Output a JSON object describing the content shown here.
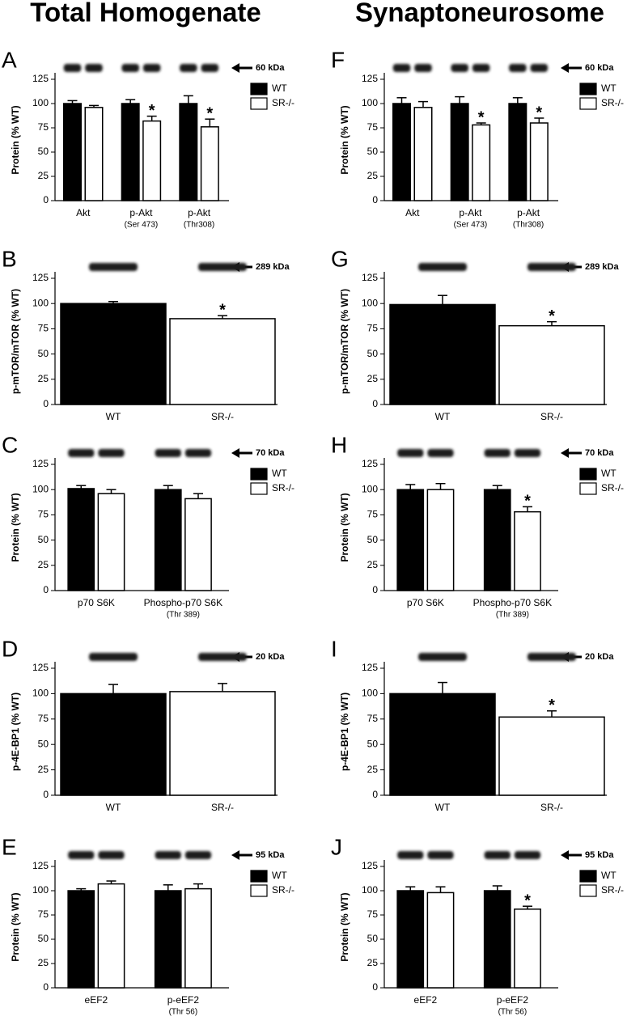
{
  "columns": [
    "Total Homogenate",
    "Synaptoneurosome"
  ],
  "chart_data": [
    {
      "type": "bar",
      "panel": "A",
      "band_label": "60 kDa",
      "ylabel": "Protein (% WT)",
      "categories": [
        "Akt",
        "p-Akt",
        "p-Akt"
      ],
      "category_notes": [
        null,
        "(Ser 473)",
        "(Thr308)"
      ],
      "series": [
        {
          "name": "WT",
          "color": "#000000",
          "values": [
            100,
            100,
            100
          ],
          "errors": [
            3,
            4,
            8
          ],
          "significance": [
            null,
            null,
            null
          ]
        },
        {
          "name": "SR-/-",
          "color": "#ffffff",
          "values": [
            96,
            82,
            76
          ],
          "errors": [
            2,
            5,
            8
          ],
          "significance": [
            null,
            "*",
            "*"
          ]
        }
      ],
      "ylim": [
        0,
        125
      ],
      "yticks": [
        0,
        25,
        50,
        75,
        100,
        125
      ]
    },
    {
      "type": "bar",
      "panel": "B",
      "band_label": "289 kDa",
      "ylabel": "p-mTOR/mTOR (% WT)",
      "categories": [
        "WT",
        "SR-/-"
      ],
      "colors": [
        "#000000",
        "#ffffff"
      ],
      "values": [
        100,
        85
      ],
      "errors": [
        2,
        3
      ],
      "significance": [
        null,
        "*"
      ],
      "ylim": [
        0,
        125
      ],
      "yticks": [
        0,
        25,
        50,
        75,
        100,
        125
      ]
    },
    {
      "type": "bar",
      "panel": "C",
      "band_label": "70 kDa",
      "ylabel": "Protein (% WT)",
      "categories": [
        "p70 S6K",
        "Phospho-p70 S6K"
      ],
      "category_notes": [
        null,
        "(Thr 389)"
      ],
      "series": [
        {
          "name": "WT",
          "color": "#000000",
          "values": [
            101,
            100
          ],
          "errors": [
            3,
            4
          ],
          "significance": [
            null,
            null
          ]
        },
        {
          "name": "SR-/-",
          "color": "#ffffff",
          "values": [
            96,
            91
          ],
          "errors": [
            4,
            5
          ],
          "significance": [
            null,
            null
          ]
        }
      ],
      "ylim": [
        0,
        125
      ],
      "yticks": [
        0,
        25,
        50,
        75,
        100,
        125
      ]
    },
    {
      "type": "bar",
      "panel": "D",
      "band_label": "20 kDa",
      "ylabel": "p-4E-BP1 (% WT)",
      "categories": [
        "WT",
        "SR-/-"
      ],
      "colors": [
        "#000000",
        "#ffffff"
      ],
      "values": [
        100,
        102
      ],
      "errors": [
        9,
        8
      ],
      "significance": [
        null,
        null
      ],
      "ylim": [
        0,
        125
      ],
      "yticks": [
        0,
        25,
        50,
        75,
        100,
        125
      ]
    },
    {
      "type": "bar",
      "panel": "E",
      "band_label": "95 kDa",
      "ylabel": "Protein (% WT)",
      "categories": [
        "eEF2",
        "p-eEF2"
      ],
      "category_notes": [
        null,
        "(Thr 56)"
      ],
      "series": [
        {
          "name": "WT",
          "color": "#000000",
          "values": [
            100,
            100
          ],
          "errors": [
            2,
            6
          ],
          "significance": [
            null,
            null
          ]
        },
        {
          "name": "SR-/-",
          "color": "#ffffff",
          "values": [
            107,
            102
          ],
          "errors": [
            3,
            5
          ],
          "significance": [
            null,
            null
          ]
        }
      ],
      "ylim": [
        0,
        125
      ],
      "yticks": [
        0,
        25,
        50,
        75,
        100,
        125
      ]
    },
    {
      "type": "bar",
      "panel": "F",
      "band_label": "60 kDa",
      "ylabel": "Protein (% WT)",
      "categories": [
        "Akt",
        "p-Akt",
        "p-Akt"
      ],
      "category_notes": [
        null,
        "(Ser 473)",
        "(Thr308)"
      ],
      "series": [
        {
          "name": "WT",
          "color": "#000000",
          "values": [
            100,
            100,
            100
          ],
          "errors": [
            6,
            7,
            6
          ],
          "significance": [
            null,
            null,
            null
          ]
        },
        {
          "name": "SR-/-",
          "color": "#ffffff",
          "values": [
            96,
            78,
            80
          ],
          "errors": [
            6,
            2,
            5
          ],
          "significance": [
            null,
            "*",
            "*"
          ]
        }
      ],
      "ylim": [
        0,
        125
      ],
      "yticks": [
        0,
        25,
        50,
        75,
        100,
        125
      ]
    },
    {
      "type": "bar",
      "panel": "G",
      "band_label": "289 kDa",
      "ylabel": "p-mTOR/mTOR (% WT)",
      "categories": [
        "WT",
        "SR-/-"
      ],
      "colors": [
        "#000000",
        "#ffffff"
      ],
      "values": [
        99,
        78
      ],
      "errors": [
        9,
        4
      ],
      "significance": [
        null,
        "*"
      ],
      "ylim": [
        0,
        125
      ],
      "yticks": [
        0,
        25,
        50,
        75,
        100,
        125
      ]
    },
    {
      "type": "bar",
      "panel": "H",
      "band_label": "70 kDa",
      "ylabel": "Protein (% WT)",
      "categories": [
        "p70 S6K",
        "Phospho-p70 S6K"
      ],
      "category_notes": [
        null,
        "(Thr 389)"
      ],
      "series": [
        {
          "name": "WT",
          "color": "#000000",
          "values": [
            100,
            100
          ],
          "errors": [
            5,
            4
          ],
          "significance": [
            null,
            null
          ]
        },
        {
          "name": "SR-/-",
          "color": "#ffffff",
          "values": [
            100,
            78
          ],
          "errors": [
            6,
            5
          ],
          "significance": [
            null,
            "*"
          ]
        }
      ],
      "ylim": [
        0,
        125
      ],
      "yticks": [
        0,
        25,
        50,
        75,
        100,
        125
      ]
    },
    {
      "type": "bar",
      "panel": "I",
      "band_label": "20 kDa",
      "ylabel": "p-4E-BP1 (% WT)",
      "categories": [
        "WT",
        "SR-/-"
      ],
      "colors": [
        "#000000",
        "#ffffff"
      ],
      "values": [
        100,
        77
      ],
      "errors": [
        11,
        6
      ],
      "significance": [
        null,
        "*"
      ],
      "ylim": [
        0,
        125
      ],
      "yticks": [
        0,
        25,
        50,
        75,
        100,
        125
      ]
    },
    {
      "type": "bar",
      "panel": "J",
      "band_label": "95 kDa",
      "ylabel": "Protein (% WT)",
      "categories": [
        "eEF2",
        "p-eEF2"
      ],
      "category_notes": [
        null,
        "(Thr 56)"
      ],
      "series": [
        {
          "name": "WT",
          "color": "#000000",
          "values": [
            100,
            100
          ],
          "errors": [
            4,
            5
          ],
          "significance": [
            null,
            null
          ]
        },
        {
          "name": "SR-/-",
          "color": "#ffffff",
          "values": [
            98,
            81
          ],
          "errors": [
            6,
            3
          ],
          "significance": [
            null,
            "*"
          ]
        }
      ],
      "ylim": [
        0,
        125
      ],
      "yticks": [
        0,
        25,
        50,
        75,
        100,
        125
      ]
    }
  ]
}
